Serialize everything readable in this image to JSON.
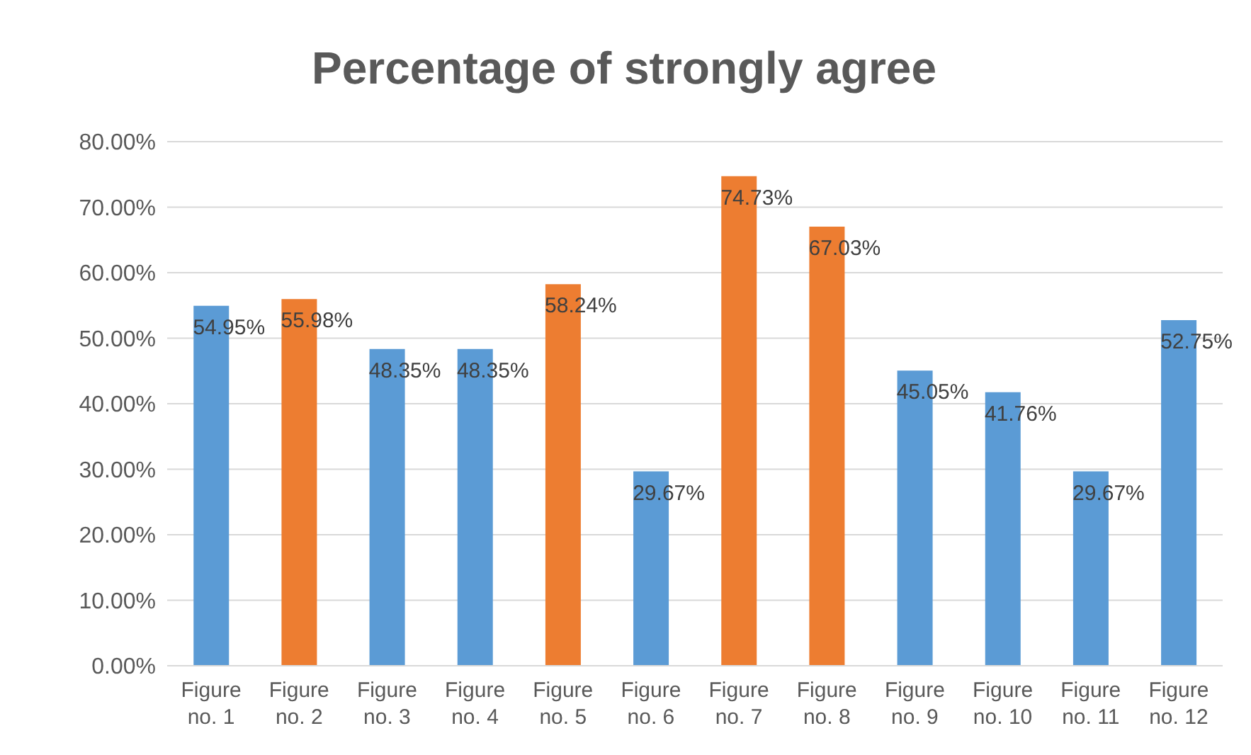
{
  "chart_data": {
    "type": "bar",
    "title": "Percentage of strongly agree",
    "categories": [
      "Figure no. 1",
      "Figure no. 2",
      "Figure no. 3",
      "Figure no. 4",
      "Figure no. 5",
      "Figure no. 6",
      "Figure no. 7",
      "Figure no. 8",
      "Figure no. 9",
      "Figure no. 10",
      "Figure no. 11",
      "Figure no. 12"
    ],
    "values": [
      54.95,
      55.98,
      48.35,
      48.35,
      58.24,
      29.67,
      74.73,
      67.03,
      45.05,
      41.76,
      29.67,
      52.75
    ],
    "value_labels": [
      "54.95%",
      "55.98%",
      "48.35%",
      "48.35%",
      "58.24%",
      "29.67%",
      "74.73%",
      "67.03%",
      "45.05%",
      "41.76%",
      "29.67%",
      "52.75%"
    ],
    "colors": [
      "#5b9bd5",
      "#ed7d31",
      "#5b9bd5",
      "#5b9bd5",
      "#ed7d31",
      "#5b9bd5",
      "#ed7d31",
      "#ed7d31",
      "#5b9bd5",
      "#5b9bd5",
      "#5b9bd5",
      "#5b9bd5"
    ],
    "ylim": [
      0,
      80
    ],
    "yticks": [
      {
        "value": 0,
        "label": "0.00%"
      },
      {
        "value": 10,
        "label": "10.00%"
      },
      {
        "value": 20,
        "label": "20.00%"
      },
      {
        "value": 30,
        "label": "30.00%"
      },
      {
        "value": 40,
        "label": "40.00%"
      },
      {
        "value": 50,
        "label": "50.00%"
      },
      {
        "value": 60,
        "label": "60.00%"
      },
      {
        "value": 70,
        "label": "70.00%"
      },
      {
        "value": 80,
        "label": "80.00%"
      }
    ],
    "grid": "y",
    "legend": false
  }
}
